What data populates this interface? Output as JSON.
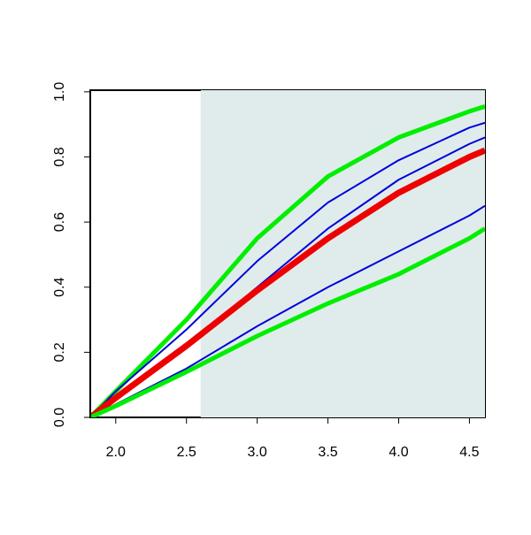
{
  "chart_data": {
    "type": "line",
    "x": [
      1.82,
      2.0,
      2.5,
      3.0,
      3.5,
      4.0,
      4.5,
      4.61
    ],
    "series": [
      {
        "color": "#00ee00",
        "width": 5,
        "values": [
          0,
          0.08,
          0.3,
          0.55,
          0.74,
          0.86,
          0.94,
          0.955
        ]
      },
      {
        "color": "#0000dd",
        "width": 2,
        "values": [
          0,
          0.08,
          0.27,
          0.48,
          0.66,
          0.79,
          0.89,
          0.905
        ]
      },
      {
        "color": "#0000dd",
        "width": 2,
        "values": [
          0,
          0.06,
          0.22,
          0.4,
          0.58,
          0.73,
          0.84,
          0.86
        ]
      },
      {
        "color": "#ee0000",
        "width": 7,
        "values": [
          0,
          0.06,
          0.22,
          0.39,
          0.55,
          0.69,
          0.8,
          0.82
        ]
      },
      {
        "color": "#0000dd",
        "width": 2,
        "values": [
          0,
          0.04,
          0.15,
          0.28,
          0.4,
          0.51,
          0.62,
          0.65
        ]
      },
      {
        "color": "#00ee00",
        "width": 5,
        "values": [
          0,
          0.035,
          0.14,
          0.25,
          0.35,
          0.44,
          0.55,
          0.58
        ]
      }
    ],
    "shade_from": 2.6,
    "shade_color": "#e0eceb",
    "xlim": [
      1.82,
      4.61
    ],
    "ylim": [
      0,
      1.005
    ],
    "xticks": [
      {
        "value": 2,
        "label": "2.0"
      },
      2.5,
      {
        "value": 3,
        "label": "3.0"
      },
      3.5,
      {
        "value": 4,
        "label": "4.0"
      },
      4.5
    ],
    "yticks": [
      {
        "value": 0,
        "label": "0.0"
      },
      0.2,
      0.4,
      0.6,
      0.8,
      {
        "value": 1,
        "label": "1.0"
      }
    ]
  }
}
